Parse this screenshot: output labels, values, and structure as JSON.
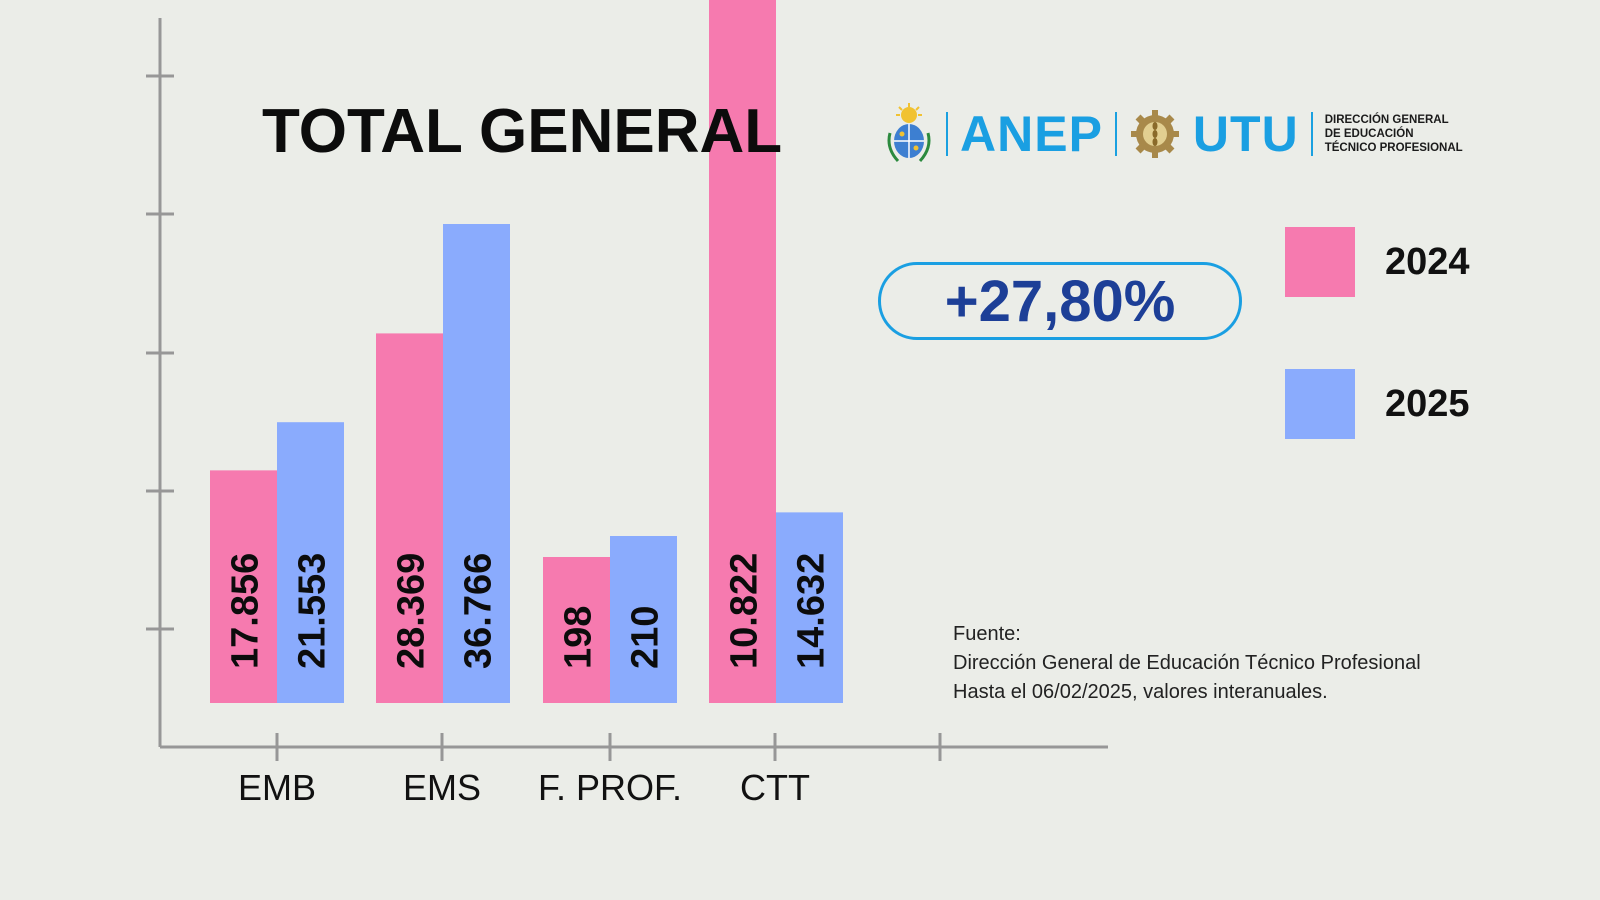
{
  "header": {
    "title": "TOTAL GENERAL",
    "logos": {
      "anep": "ANEP",
      "utu": "UTU",
      "dgetp_lines": [
        "DIRECCIÓN GENERAL",
        "DE EDUCACIÓN",
        "TÉCNICO PROFESIONAL"
      ],
      "seal_icon": "uruguay-coat-of-arms-icon",
      "utu_icon": "utu-gear-wheat-icon"
    }
  },
  "highlight": {
    "percent_change": "+27,80%"
  },
  "legend": {
    "items": [
      {
        "label": "2024",
        "color": "#f67aaf"
      },
      {
        "label": "2025",
        "color": "#8aabfd"
      }
    ]
  },
  "source": {
    "lines": [
      "Fuente:",
      "Dirección General de Educación Técnico Profesional",
      "Hasta el 06/02/2025, valores interanuales."
    ]
  },
  "chart_data": {
    "type": "bar",
    "title": "TOTAL GENERAL",
    "categories": [
      "EMB",
      "EMS",
      "F. PROF.",
      "CTT"
    ],
    "series": [
      {
        "name": "2024",
        "color": "#f67aaf",
        "values": [
          17856,
          28369,
          198,
          10822
        ],
        "labels": [
          "17.856",
          "28.369",
          "198",
          "10.822"
        ]
      },
      {
        "name": "2025",
        "color": "#8aabfd",
        "values": [
          21553,
          36766,
          210,
          14632
        ],
        "labels": [
          "21.553",
          "36.766",
          "210",
          "14.632"
        ]
      }
    ],
    "xlabel": "",
    "ylabel": "",
    "legend_position": "right",
    "grid": false,
    "colors": {
      "axis": "#979797",
      "label_text": "#0c0c0c"
    }
  }
}
